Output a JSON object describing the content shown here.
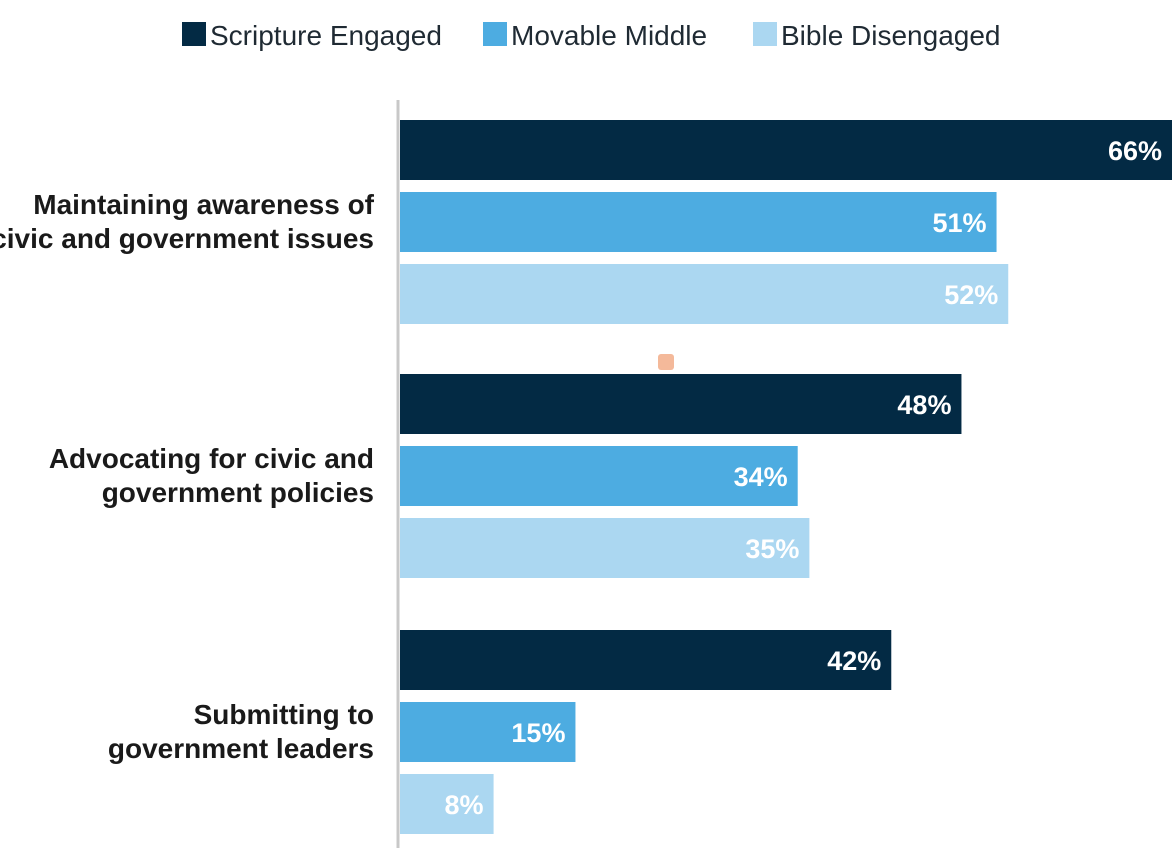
{
  "chart_data": {
    "type": "bar",
    "orientation": "horizontal",
    "title": "",
    "xlabel": "",
    "ylabel": "",
    "value_suffix": "%",
    "xlim": [
      0,
      66
    ],
    "legend_position": "top",
    "grid": false,
    "categories": [
      [
        "Maintaining awareness of",
        "civic and government issues"
      ],
      [
        "Advocating for civic and",
        "government policies"
      ],
      [
        "Submitting to",
        "government leaders"
      ]
    ],
    "series": [
      {
        "name": "Scripture Engaged",
        "color": "#032a44",
        "values": [
          66,
          48,
          42
        ]
      },
      {
        "name": "Movable Middle",
        "color": "#4dace1",
        "values": [
          51,
          34,
          15
        ]
      },
      {
        "name": "Bible Disengaged",
        "color": "#abd7f1",
        "values": [
          52,
          35,
          8
        ]
      }
    ]
  }
}
